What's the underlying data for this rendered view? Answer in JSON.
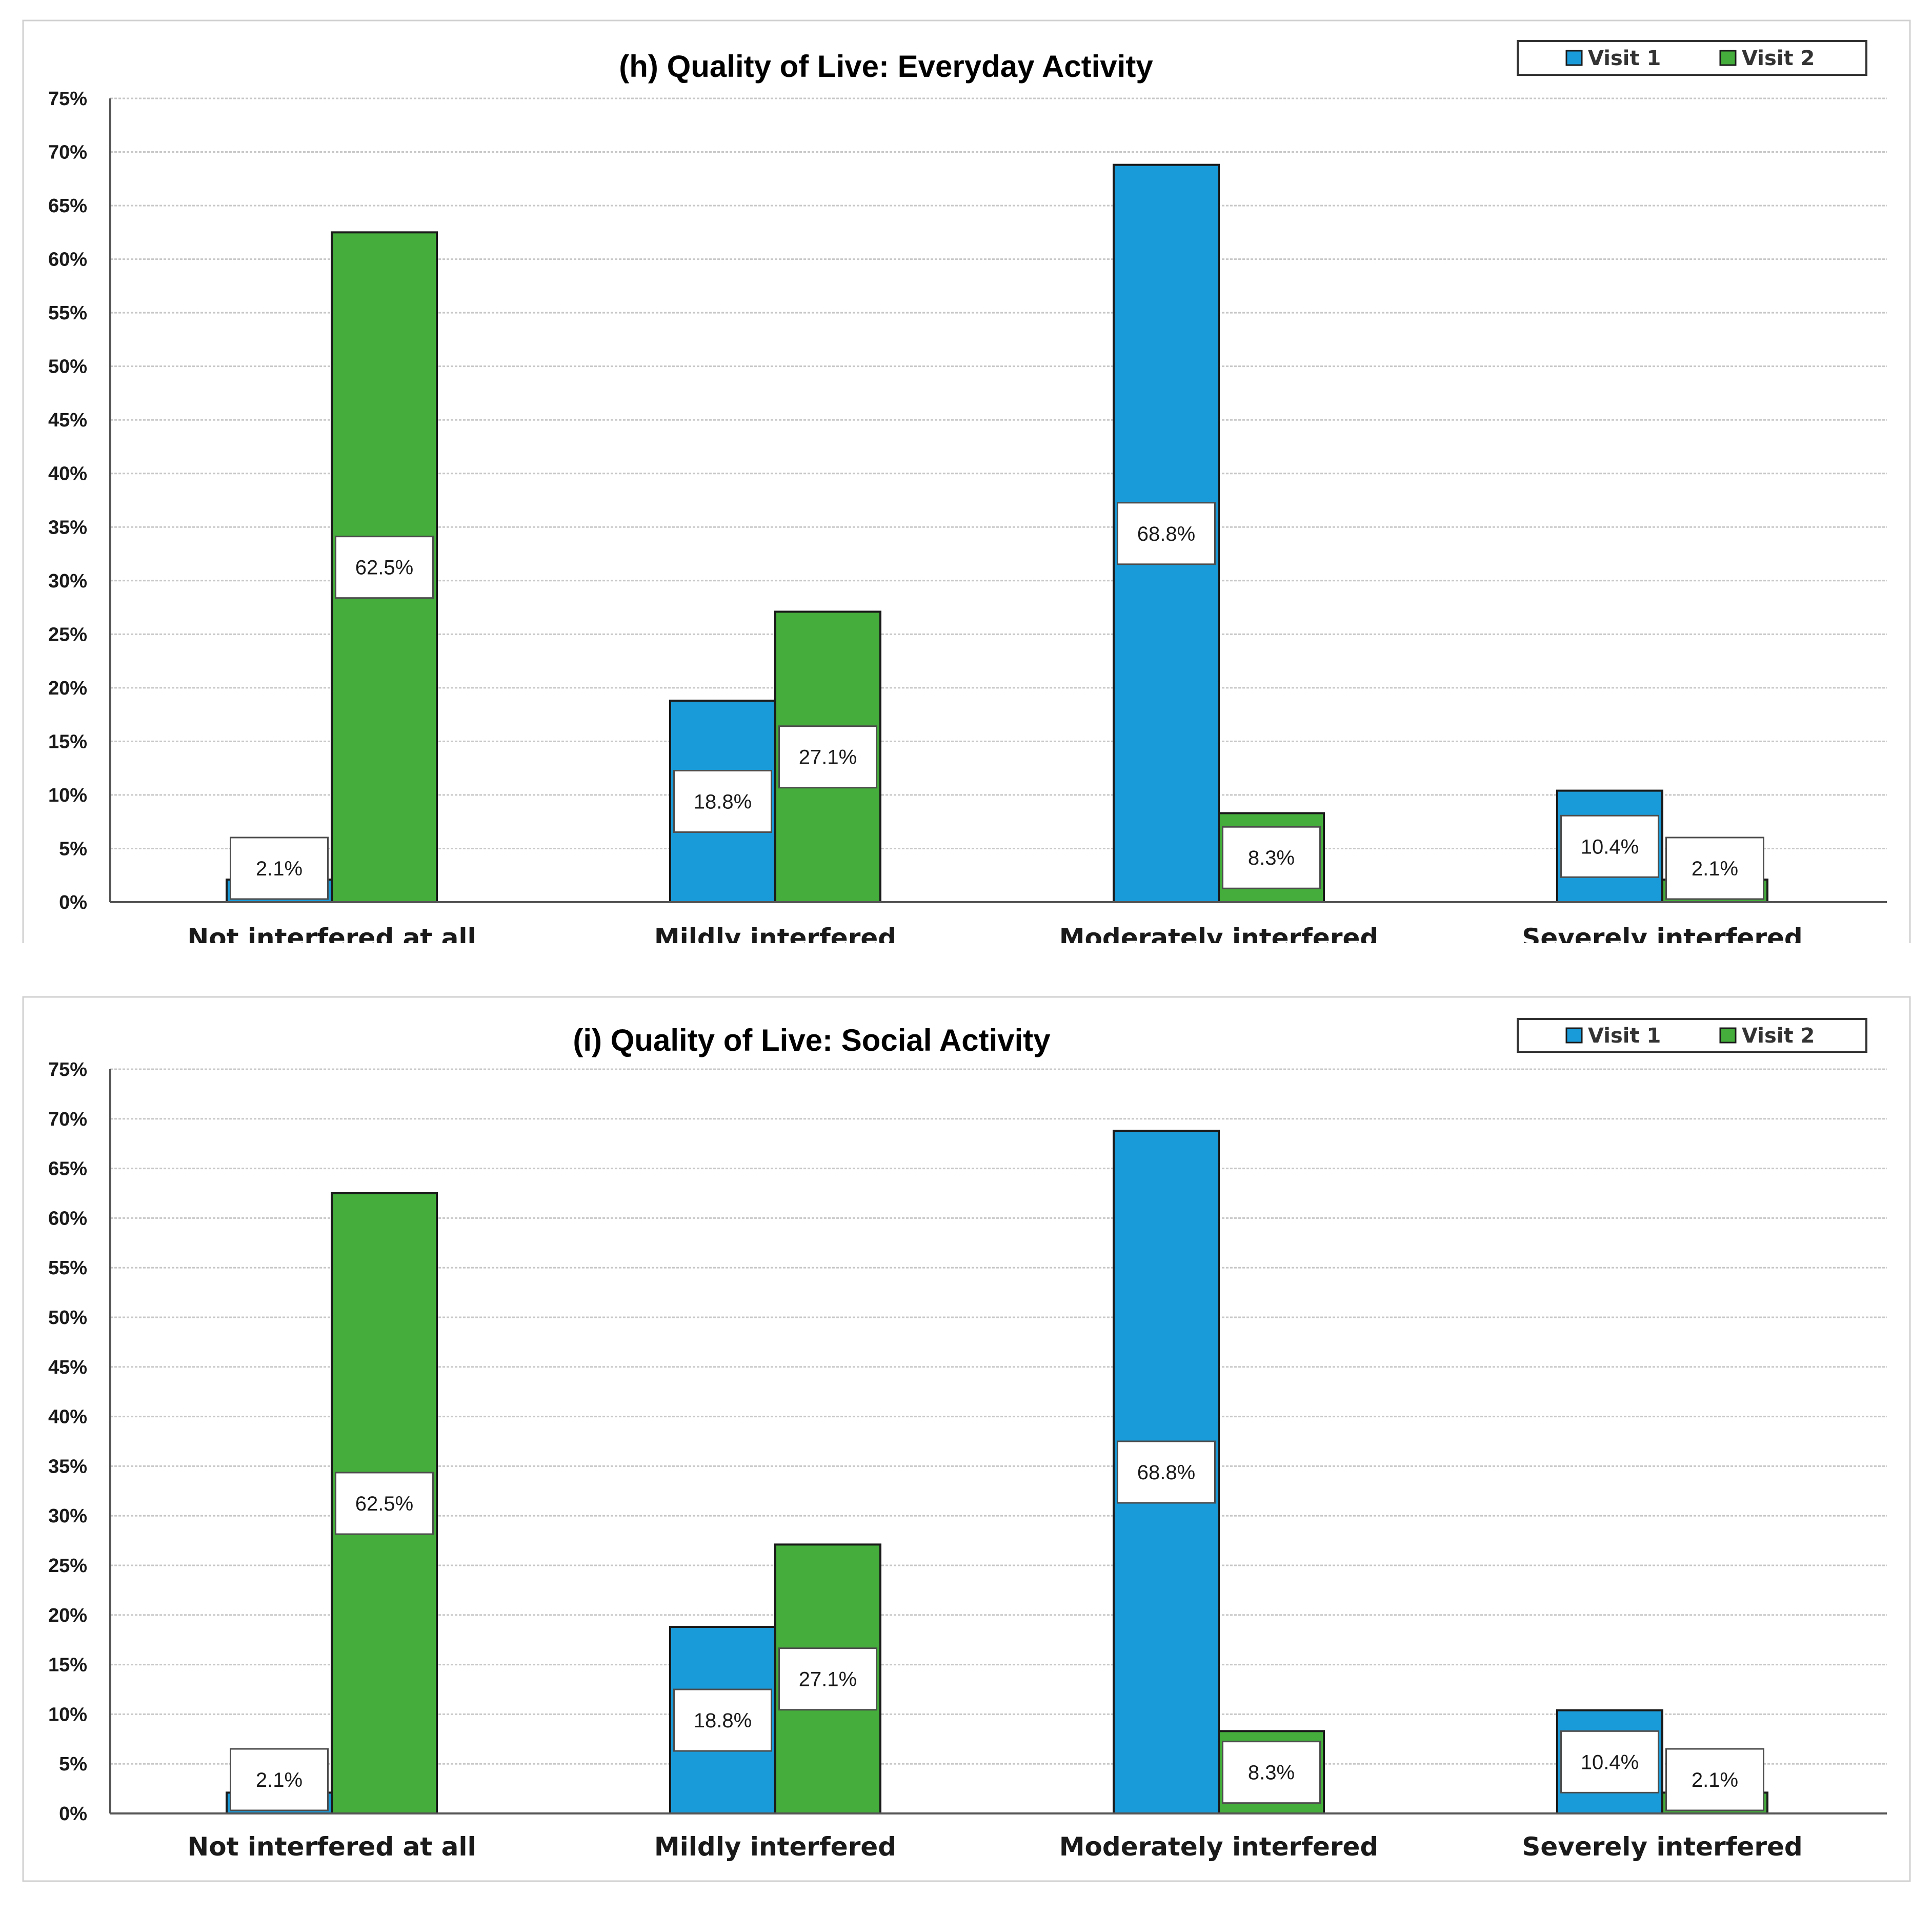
{
  "chart_data": [
    {
      "type": "bar",
      "title": "(h) Quality of Live: Everyday Activity",
      "categories": [
        "Not interfered at all",
        "Mildly interfered",
        "Moderately interfered",
        "Severely interfered"
      ],
      "series": [
        {
          "name": "Visit 1",
          "color": "#1a9bd9",
          "values": [
            2.1,
            18.8,
            68.8,
            10.4
          ],
          "labels": [
            "2.1%",
            "18.8%",
            "68.8%",
            "10.4%"
          ]
        },
        {
          "name": "Visit 2",
          "color": "#44ad3b",
          "values": [
            62.5,
            27.1,
            8.3,
            2.1
          ],
          "labels": [
            "62.5%",
            "27.1%",
            "8.3%",
            "2.1%"
          ]
        }
      ],
      "ylim": [
        0,
        75
      ],
      "yticks": [
        "0%",
        "5%",
        "10%",
        "15%",
        "20%",
        "25%",
        "30%",
        "35%",
        "40%",
        "45%",
        "50%",
        "55%",
        "60%",
        "65%",
        "70%",
        "75%"
      ],
      "xlabel": "",
      "ylabel": "",
      "legend": "top-right",
      "grid": true
    },
    {
      "type": "bar",
      "title": "(i) Quality of Live: Social Activity",
      "categories": [
        "Not interfered at all",
        "Mildly interfered",
        "Moderately interfered",
        "Severely interfered"
      ],
      "series": [
        {
          "name": "Visit 1",
          "color": "#1a9bd9",
          "values": [
            2.1,
            18.8,
            68.8,
            10.4
          ],
          "labels": [
            "2.1%",
            "18.8%",
            "68.8%",
            "10.4%"
          ]
        },
        {
          "name": "Visit 2",
          "color": "#44ad3b",
          "values": [
            62.5,
            27.1,
            8.3,
            2.1
          ],
          "labels": [
            "62.5%",
            "27.1%",
            "8.3%",
            "2.1%"
          ]
        }
      ],
      "ylim": [
        0,
        75
      ],
      "yticks": [
        "0%",
        "5%",
        "10%",
        "15%",
        "20%",
        "25%",
        "30%",
        "35%",
        "40%",
        "45%",
        "50%",
        "55%",
        "60%",
        "65%",
        "70%",
        "75%"
      ],
      "xlabel": "",
      "ylabel": "",
      "legend": "top-right",
      "grid": true
    }
  ]
}
